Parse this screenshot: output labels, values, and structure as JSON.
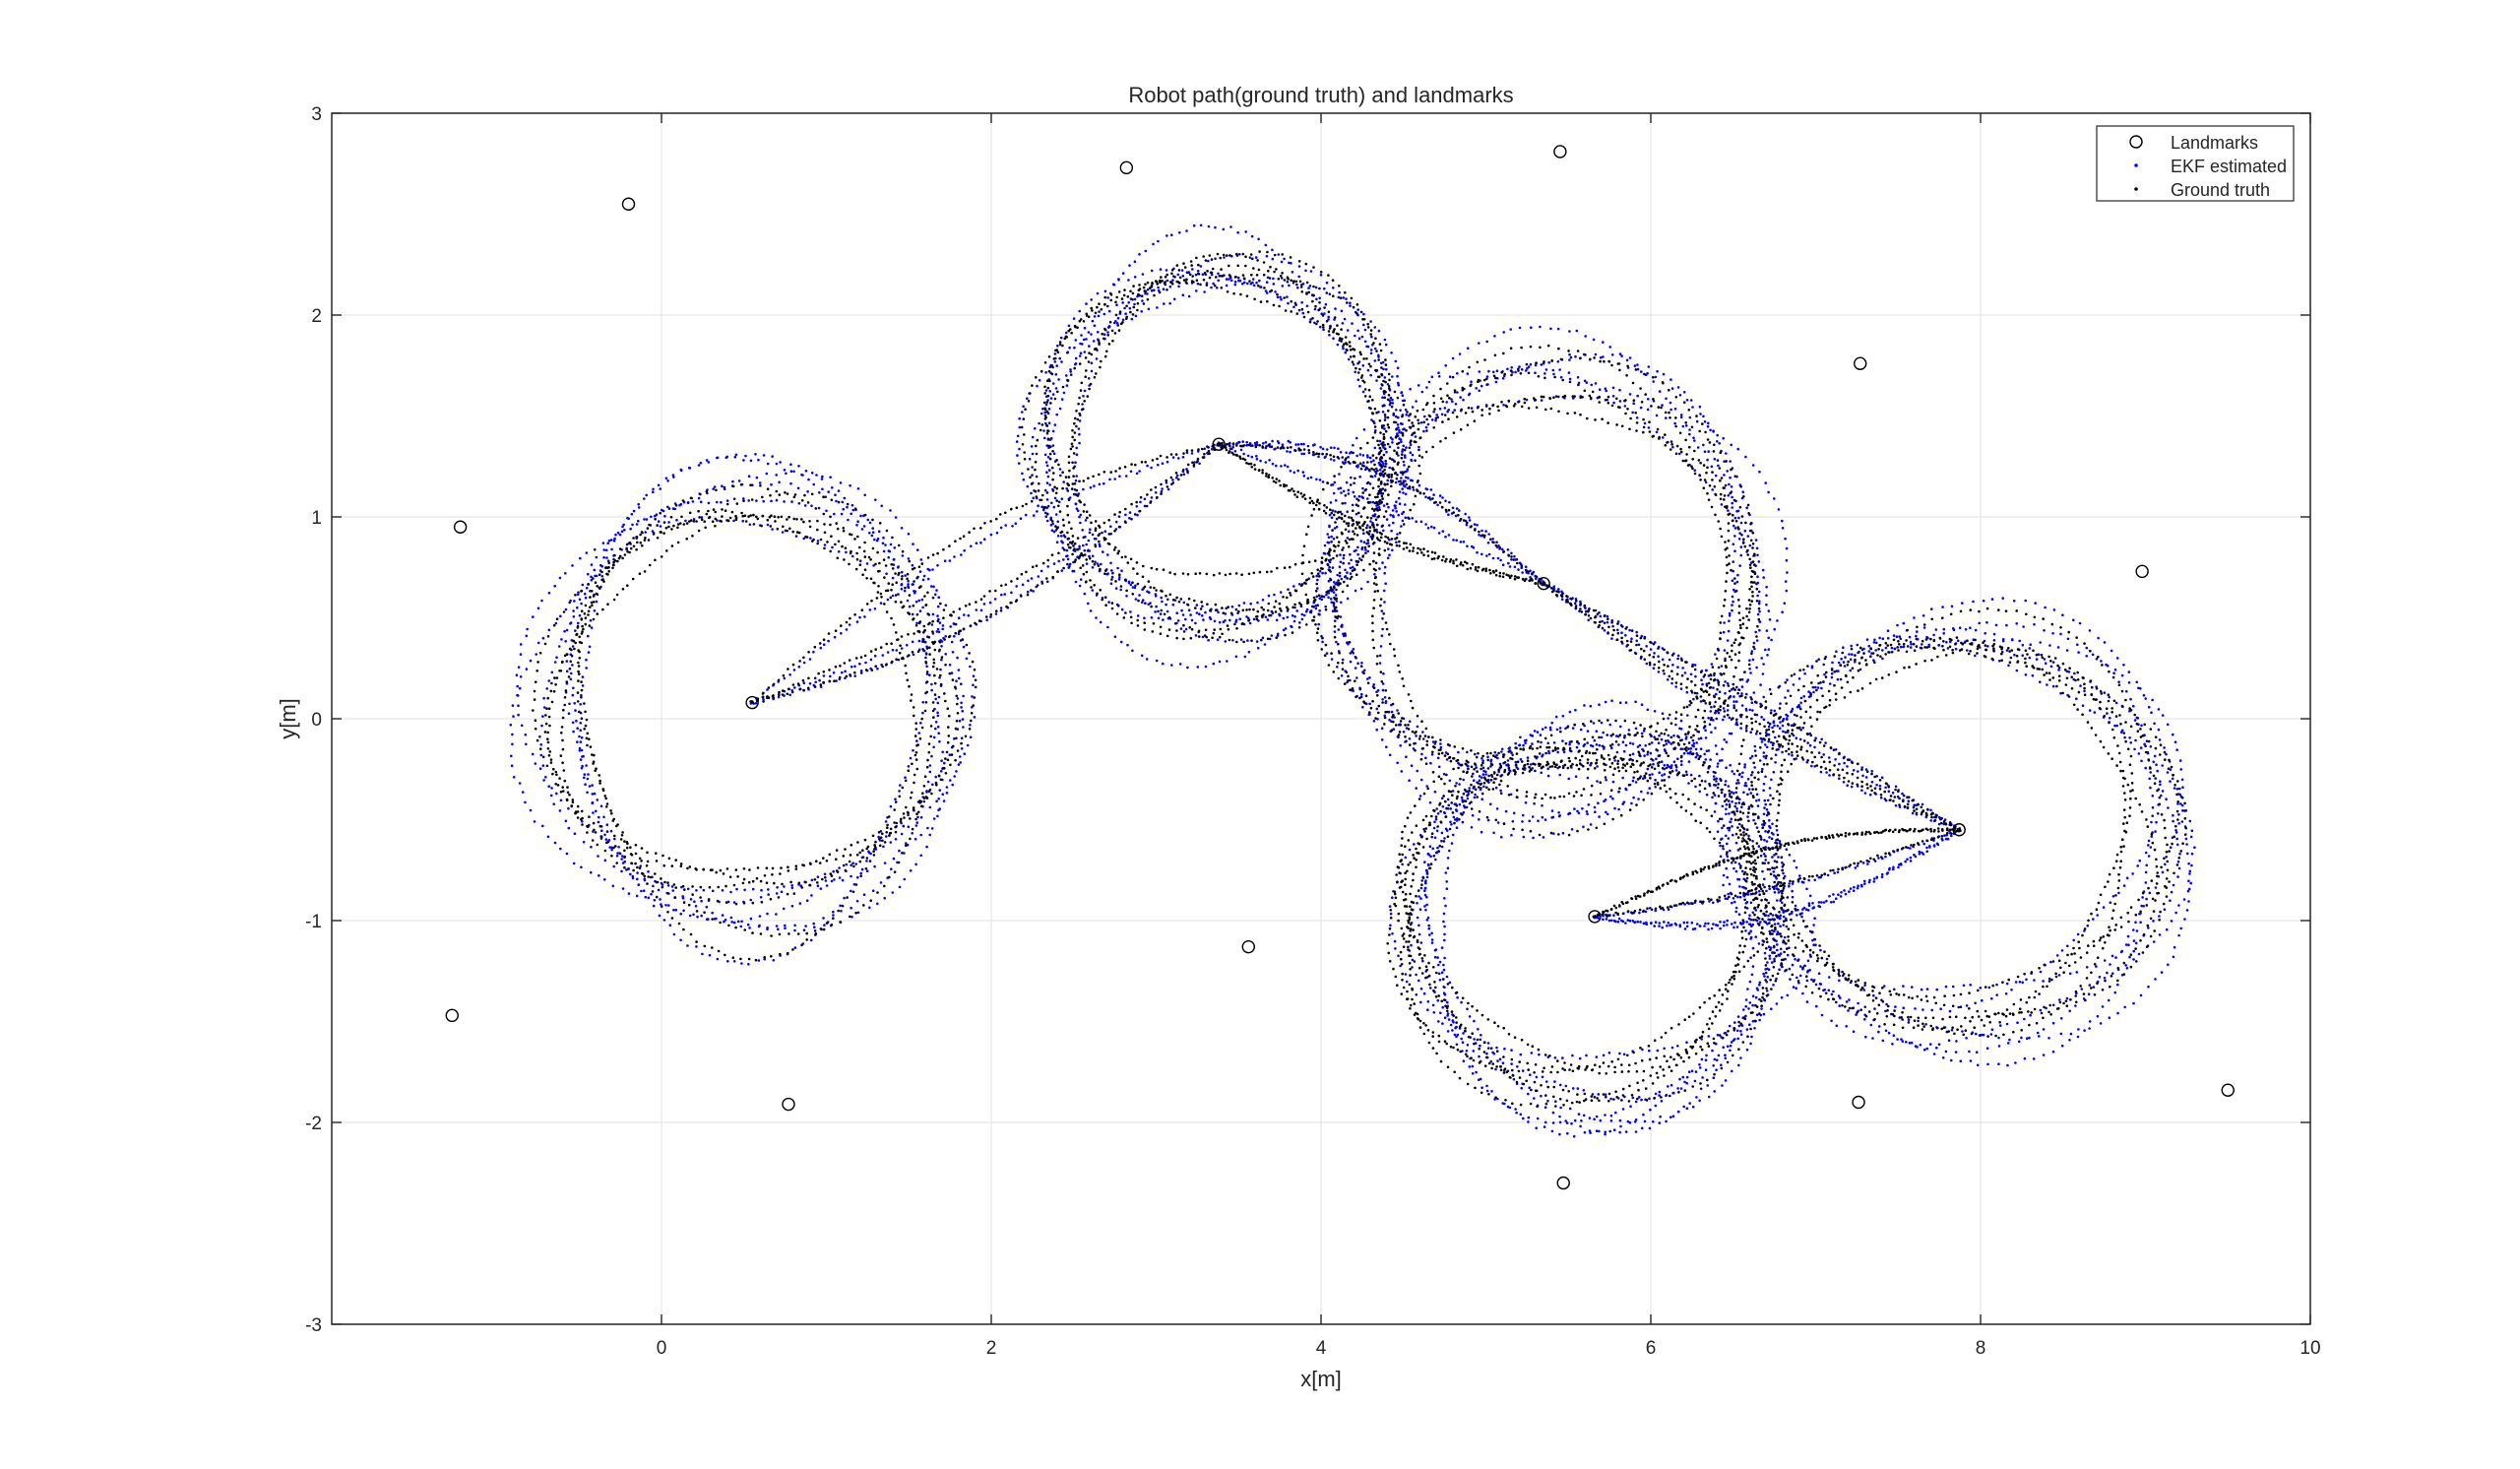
{
  "chart_data": {
    "type": "scatter",
    "title": "Robot path(ground truth) and landmarks",
    "xlabel": "x[m]",
    "ylabel": "y[m]",
    "xlim": [
      -2,
      10
    ],
    "ylim": [
      -3,
      3
    ],
    "xticks": [
      0,
      2,
      4,
      6,
      8,
      10
    ],
    "yticks": [
      -3,
      -2,
      -1,
      0,
      1,
      2,
      3
    ],
    "grid": true,
    "legend_position": "top-right",
    "colors": {
      "landmarks": "#000000",
      "ekf_estimated": "#0000ff",
      "ground_truth": "#000000",
      "axes": "#262626",
      "grid": "#e6e6e6"
    },
    "series": [
      {
        "name": "Landmarks",
        "marker": "circle",
        "points": [
          [
            -0.2,
            2.55
          ],
          [
            2.82,
            2.73
          ],
          [
            5.45,
            2.81
          ],
          [
            -1.22,
            0.95
          ],
          [
            3.38,
            1.36
          ],
          [
            7.27,
            1.76
          ],
          [
            0.55,
            0.08
          ],
          [
            5.35,
            0.67
          ],
          [
            8.98,
            0.73
          ],
          [
            7.87,
            -0.55
          ],
          [
            -1.27,
            -1.47
          ],
          [
            3.56,
            -1.13
          ],
          [
            5.66,
            -0.98
          ],
          [
            0.77,
            -1.91
          ],
          [
            7.26,
            -1.9
          ],
          [
            5.47,
            -2.3
          ],
          [
            9.5,
            -1.84
          ]
        ]
      },
      {
        "name": "EKF estimated",
        "marker": "dot",
        "loops": [
          {
            "cx": 0.55,
            "cy": 0.08,
            "rx": 1.2,
            "ry": 1.05
          },
          {
            "cx": 3.38,
            "cy": 1.36,
            "rx": 1.05,
            "ry": 0.9
          },
          {
            "cx": 5.35,
            "cy": 0.67,
            "rx": 1.25,
            "ry": 1.05
          },
          {
            "cx": 7.87,
            "cy": -0.55,
            "rx": 1.3,
            "ry": 1.0
          },
          {
            "cx": 5.66,
            "cy": -0.98,
            "rx": 1.1,
            "ry": 0.9
          }
        ]
      },
      {
        "name": "Ground truth",
        "marker": "dot",
        "loops": [
          {
            "cx": 0.55,
            "cy": 0.08,
            "rx": 1.15,
            "ry": 1.0
          },
          {
            "cx": 3.38,
            "cy": 1.36,
            "rx": 1.0,
            "ry": 0.85
          },
          {
            "cx": 5.35,
            "cy": 0.67,
            "rx": 1.2,
            "ry": 1.0
          },
          {
            "cx": 7.87,
            "cy": -0.55,
            "rx": 1.25,
            "ry": 0.95
          },
          {
            "cx": 5.66,
            "cy": -0.98,
            "rx": 1.05,
            "ry": 0.85
          }
        ]
      }
    ]
  }
}
